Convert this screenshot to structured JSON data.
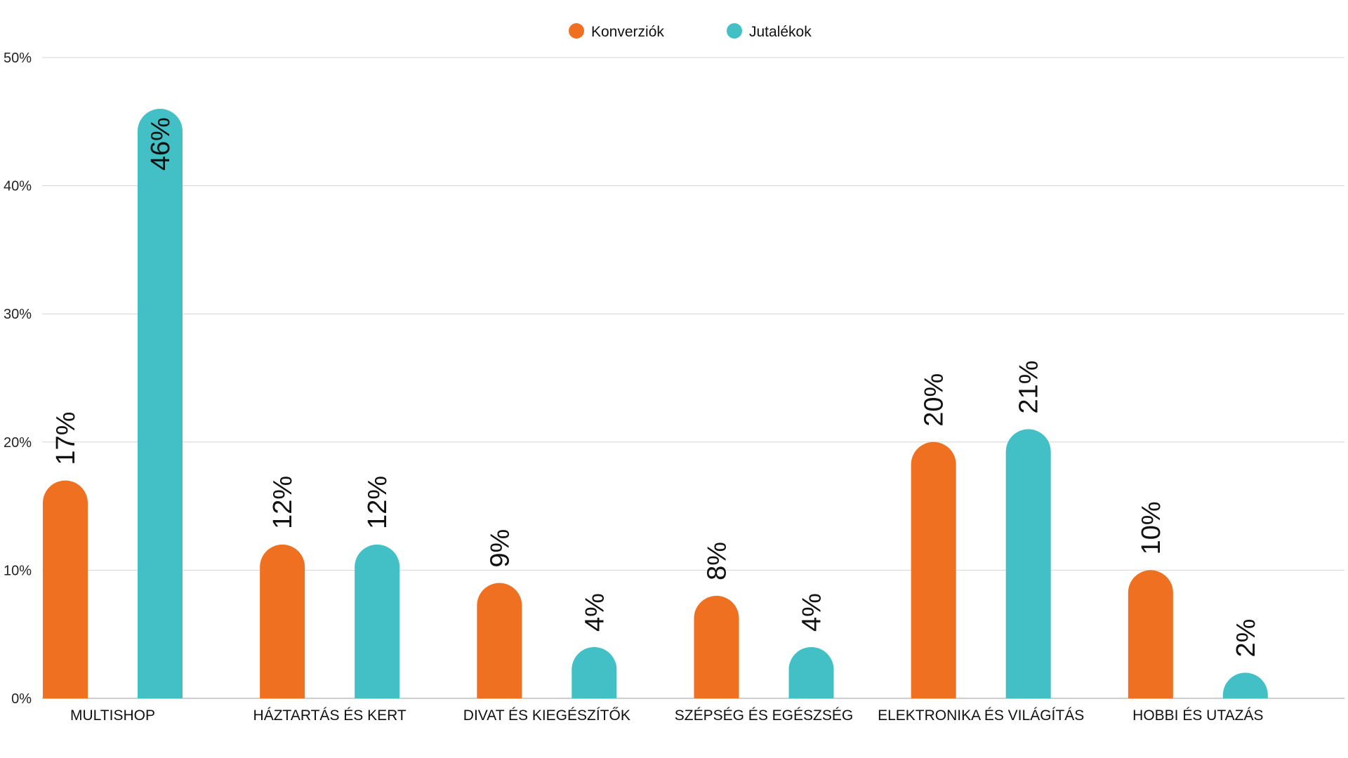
{
  "chart_data": {
    "type": "bar",
    "categories": [
      "MULTISHOP",
      "HÁZTARTÁS ÉS KERT",
      "DIVAT ÉS KIEGÉSZÍTŐK",
      "SZÉPSÉG ÉS EGÉSZSÉG",
      "ELEKTRONIKA ÉS VILÁGÍTÁS",
      "HOBBI ÉS UTAZÁS"
    ],
    "series": [
      {
        "name": "Konverziók",
        "color": "#F07022",
        "values": [
          17,
          12,
          9,
          8,
          20,
          10
        ],
        "labels": [
          "17%",
          "12%",
          "9%",
          "8%",
          "20%",
          "10%"
        ]
      },
      {
        "name": "Jutalékok",
        "color": "#42C0C5",
        "values": [
          46,
          12,
          4,
          4,
          21,
          2
        ],
        "labels": [
          "46%",
          "12%",
          "4%",
          "4%",
          "21%",
          "2%"
        ]
      }
    ],
    "yticks": [
      0,
      10,
      20,
      30,
      40,
      50
    ],
    "ytick_labels": [
      "0%",
      "10%",
      "20%",
      "30%",
      "40%",
      "50%"
    ],
    "ylim": [
      0,
      50
    ],
    "grid": true,
    "legend_position": "top-center",
    "title": "",
    "xlabel": "",
    "ylabel": ""
  }
}
